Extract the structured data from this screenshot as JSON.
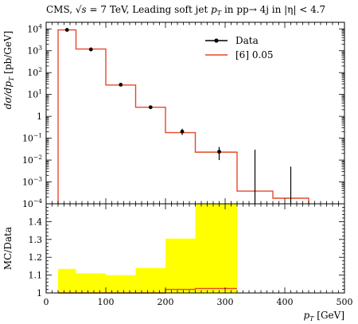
{
  "chart_data": [
    {
      "type": "step",
      "panel": "main",
      "title": {
        "pre": "CMS, ",
        "sqrt_s": "√s",
        "mid": " = 7 TeV, Leading soft jet ",
        "pt": "p",
        "pt_sub": "T",
        "post": " in pp→ 4j in |η| < 4.7"
      },
      "ylabel": "dσ/dp_T [pb/GeV]",
      "yscale": "log",
      "ylim": [
        0.0001,
        20000
      ],
      "xlim": [
        0,
        500
      ],
      "y_ticks": [
        {
          "value": 0.0001,
          "base": "10",
          "exp": "−4"
        },
        {
          "value": 0.001,
          "base": "10",
          "exp": "−3"
        },
        {
          "value": 0.01,
          "base": "10",
          "exp": "−2"
        },
        {
          "value": 0.1,
          "base": "10",
          "exp": "−1"
        },
        {
          "value": 1,
          "base": "1",
          "exp": ""
        },
        {
          "value": 10,
          "base": "10",
          "exp": "1"
        },
        {
          "value": 100,
          "base": "10",
          "exp": "2"
        },
        {
          "value": 1000,
          "base": "10",
          "exp": "3"
        },
        {
          "value": 10000,
          "base": "10",
          "exp": "4"
        }
      ],
      "legend_position": "top-right",
      "series": [
        {
          "name": "Data",
          "kind": "points",
          "color": "#000000",
          "points": [
            {
              "x": 35,
              "y": 9000,
              "ylo": 9000,
              "yhi": 9000
            },
            {
              "x": 75,
              "y": 1150,
              "ylo": 1150,
              "yhi": 1150
            },
            {
              "x": 125,
              "y": 28,
              "ylo": 28,
              "yhi": 28
            },
            {
              "x": 175,
              "y": 2.6,
              "ylo": 2.6,
              "yhi": 2.6
            },
            {
              "x": 228,
              "y": 0.2,
              "ylo": 0.14,
              "yhi": 0.27
            },
            {
              "x": 290,
              "y": 0.024,
              "ylo": 0.01,
              "yhi": 0.04
            },
            {
              "x": 350,
              "y": null,
              "ylo": 0.0001,
              "yhi": 0.03
            },
            {
              "x": 410,
              "y": null,
              "ylo": 0.0001,
              "yhi": 0.005
            }
          ]
        },
        {
          "name": "[6] 0.05",
          "kind": "step",
          "color": "#e8472a",
          "bins": [
            {
              "x0": 20,
              "x1": 50,
              "y": 9000
            },
            {
              "x0": 50,
              "x1": 100,
              "y": 1200
            },
            {
              "x0": 100,
              "x1": 150,
              "y": 27
            },
            {
              "x0": 150,
              "x1": 200,
              "y": 2.6
            },
            {
              "x0": 200,
              "x1": 250,
              "y": 0.18
            },
            {
              "x0": 250,
              "x1": 320,
              "y": 0.023
            },
            {
              "x0": 320,
              "x1": 380,
              "y": 0.00038
            },
            {
              "x0": 380,
              "x1": 440,
              "y": 0.00018
            }
          ]
        }
      ]
    },
    {
      "type": "ratio",
      "panel": "ratio",
      "ylabel": "MC/Data",
      "xlabel": "p_T [GeV]",
      "xlim": [
        0,
        500
      ],
      "ylim": [
        1,
        1.5
      ],
      "x_ticks": [
        "0",
        "100",
        "200",
        "300",
        "400",
        "500"
      ],
      "y_ticks": [
        "1",
        "1.1",
        "1.2",
        "1.3",
        "1.4"
      ],
      "band_color": "#ffff00",
      "line_color": "#e8472a",
      "bins": [
        {
          "x0": 20,
          "x1": 50,
          "band_hi": 1.135,
          "ratio": 1.0
        },
        {
          "x0": 50,
          "x1": 100,
          "band_hi": 1.11,
          "ratio": 1.0
        },
        {
          "x0": 100,
          "x1": 150,
          "band_hi": 1.1,
          "ratio": 1.0
        },
        {
          "x0": 150,
          "x1": 200,
          "band_hi": 1.14,
          "ratio": 1.0
        },
        {
          "x0": 200,
          "x1": 250,
          "band_hi": 1.305,
          "ratio": 1.02
        },
        {
          "x0": 250,
          "x1": 320,
          "band_hi": 1.5,
          "ratio": 1.025
        }
      ]
    }
  ]
}
